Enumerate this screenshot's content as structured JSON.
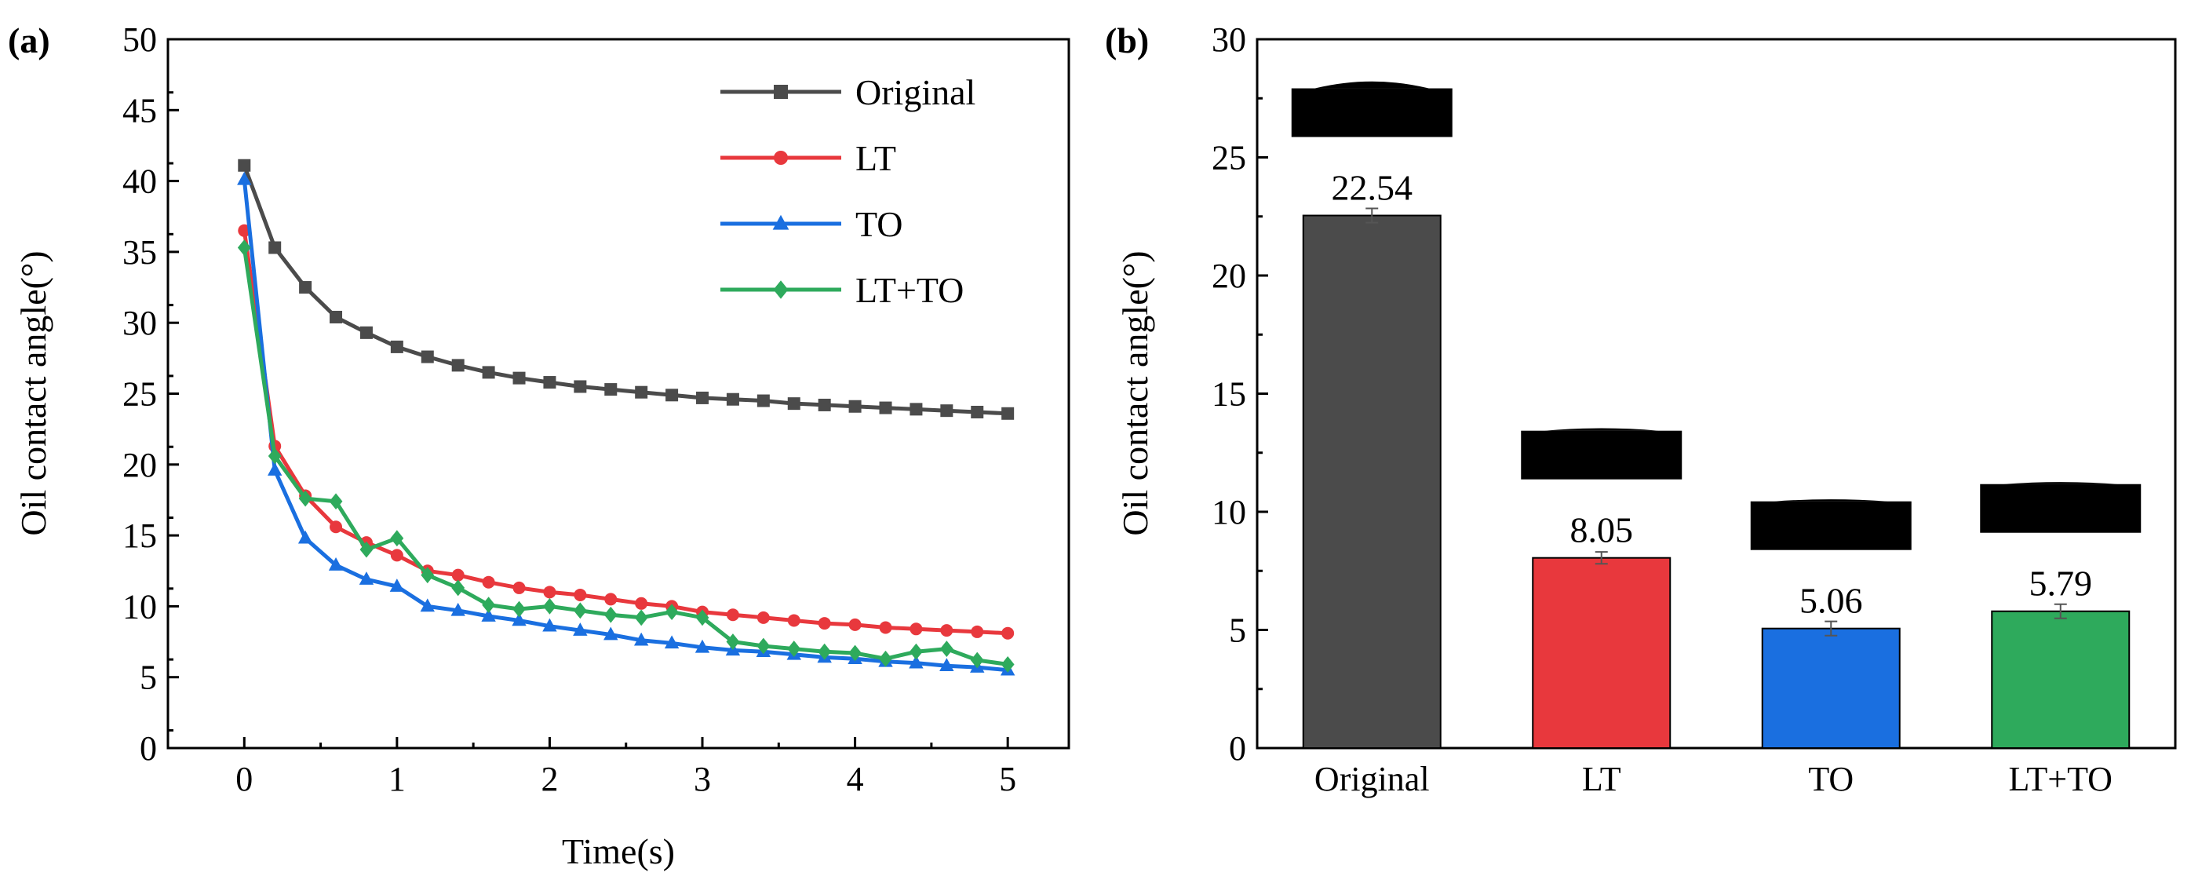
{
  "colors": {
    "original": "#4b4b4b",
    "lt": "#e8383d",
    "to": "#1a6fe0",
    "lt_to": "#2eaa5c",
    "droplet": "#000000"
  },
  "chart_data": [
    {
      "type": "line",
      "panel_label": "(a)",
      "xlabel": "Time(s)",
      "ylabel": "Oil contact angle(°)",
      "xlim": [
        -0.5,
        5.4
      ],
      "ylim": [
        0,
        50
      ],
      "xticks": [
        0,
        1,
        2,
        3,
        4,
        5
      ],
      "yticks": [
        0,
        5,
        10,
        15,
        20,
        25,
        30,
        35,
        40,
        45,
        50
      ],
      "legend_position": "top-right",
      "x": [
        0,
        0.2,
        0.4,
        0.6,
        0.8,
        1.0,
        1.2,
        1.4,
        1.6,
        1.8,
        2.0,
        2.2,
        2.4,
        2.6,
        2.8,
        3.0,
        3.2,
        3.4,
        3.6,
        3.8,
        4.0,
        4.2,
        4.4,
        4.6,
        4.8,
        5.0
      ],
      "series": [
        {
          "name": "Original",
          "color_key": "original",
          "marker": "square",
          "values": [
            41.1,
            35.3,
            32.5,
            30.4,
            29.3,
            28.3,
            27.6,
            27.0,
            26.5,
            26.1,
            25.8,
            25.5,
            25.3,
            25.1,
            24.9,
            24.7,
            24.6,
            24.5,
            24.3,
            24.2,
            24.1,
            24.0,
            23.9,
            23.8,
            23.7,
            23.6
          ]
        },
        {
          "name": "LT",
          "color_key": "lt",
          "marker": "circle",
          "values": [
            36.5,
            21.3,
            17.8,
            15.6,
            14.5,
            13.6,
            12.5,
            12.2,
            11.7,
            11.3,
            11.0,
            10.8,
            10.5,
            10.2,
            10.0,
            9.6,
            9.4,
            9.2,
            9.0,
            8.8,
            8.7,
            8.5,
            8.4,
            8.3,
            8.2,
            8.1
          ]
        },
        {
          "name": "TO",
          "color_key": "to",
          "marker": "triangle",
          "values": [
            40.1,
            19.6,
            14.8,
            12.9,
            11.9,
            11.4,
            10.0,
            9.7,
            9.3,
            9.0,
            8.6,
            8.3,
            8.0,
            7.6,
            7.4,
            7.1,
            6.9,
            6.8,
            6.6,
            6.4,
            6.3,
            6.1,
            6.0,
            5.8,
            5.7,
            5.5
          ]
        },
        {
          "name": "LT+TO",
          "color_key": "lt_to",
          "marker": "diamond",
          "values": [
            35.3,
            20.6,
            17.6,
            17.4,
            14.0,
            14.8,
            12.2,
            11.3,
            10.1,
            9.8,
            10.0,
            9.7,
            9.4,
            9.2,
            9.6,
            9.2,
            7.5,
            7.2,
            7.0,
            6.8,
            6.7,
            6.3,
            6.8,
            7.0,
            6.2,
            5.9
          ]
        }
      ]
    },
    {
      "type": "bar",
      "panel_label": "(b)",
      "xlabel": "",
      "ylabel": "Oil contact angle(°)",
      "ylim": [
        0,
        30
      ],
      "yticks": [
        0,
        5,
        10,
        15,
        20,
        25,
        30
      ],
      "categories": [
        "Original",
        "LT",
        "TO",
        "LT+TO"
      ],
      "values": [
        22.54,
        8.05,
        5.06,
        5.79
      ],
      "errors": [
        0.3,
        0.25,
        0.3,
        0.3
      ],
      "value_labels": [
        "22.54",
        "8.05",
        "5.06",
        "5.79"
      ],
      "color_keys": [
        "original",
        "lt",
        "to",
        "lt_to"
      ],
      "droplet_images": true
    }
  ]
}
